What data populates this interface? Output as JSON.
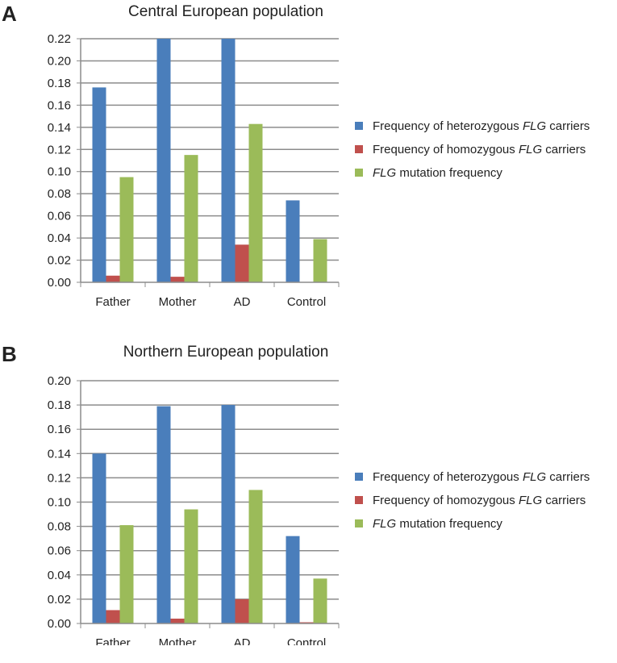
{
  "chart_data": [
    {
      "type": "bar",
      "panel_label": "A",
      "title": "Central European population",
      "categories": [
        "Father",
        "Mother",
        "AD",
        "Control"
      ],
      "ylim": [
        0,
        0.22
      ],
      "yticks": [
        "0.00",
        "0.02",
        "0.04",
        "0.06",
        "0.08",
        "0.10",
        "0.12",
        "0.14",
        "0.16",
        "0.18",
        "0.20",
        "0.22"
      ],
      "grid": true,
      "legend_position": "right",
      "series": [
        {
          "name": "Frequency of heterozygous FLG carriers",
          "name_parts": [
            {
              "text": "Frequency of heterozygous "
            },
            {
              "text": "FLG",
              "italic": true
            },
            {
              "text": " carriers"
            }
          ],
          "color": "#4a7ebb",
          "values": [
            0.176,
            0.22,
            0.22,
            0.074
          ]
        },
        {
          "name": "Frequency of homozygous FLG carriers",
          "name_parts": [
            {
              "text": "Frequency of homozygous "
            },
            {
              "text": "FLG",
              "italic": true
            },
            {
              "text": " carriers"
            }
          ],
          "color": "#c0504d",
          "values": [
            0.006,
            0.005,
            0.034,
            0.0
          ]
        },
        {
          "name": "FLG mutation frequency",
          "name_parts": [
            {
              "text": "FLG",
              "italic": true
            },
            {
              "text": " mutation frequency"
            }
          ],
          "color": "#9bbb59",
          "values": [
            0.095,
            0.115,
            0.143,
            0.039
          ]
        }
      ]
    },
    {
      "type": "bar",
      "panel_label": "B",
      "title": "Northern European population",
      "categories": [
        "Father",
        "Mother",
        "AD",
        "Control"
      ],
      "ylim": [
        0,
        0.2
      ],
      "yticks": [
        "0.00",
        "0.02",
        "0.04",
        "0.06",
        "0.08",
        "0.10",
        "0.12",
        "0.14",
        "0.16",
        "0.18",
        "0.20"
      ],
      "grid": true,
      "legend_position": "right",
      "series": [
        {
          "name": "Frequency of heterozygous FLG carriers",
          "name_parts": [
            {
              "text": "Frequency of heterozygous "
            },
            {
              "text": "FLG",
              "italic": true
            },
            {
              "text": " carriers"
            }
          ],
          "color": "#4a7ebb",
          "values": [
            0.14,
            0.179,
            0.18,
            0.072
          ]
        },
        {
          "name": "Frequency of homozygous FLG carriers",
          "name_parts": [
            {
              "text": "Frequency of homozygous "
            },
            {
              "text": "FLG",
              "italic": true
            },
            {
              "text": " carriers"
            }
          ],
          "color": "#c0504d",
          "values": [
            0.011,
            0.004,
            0.02,
            0.001
          ]
        },
        {
          "name": "FLG mutation frequency",
          "name_parts": [
            {
              "text": "FLG",
              "italic": true
            },
            {
              "text": " mutation frequency"
            }
          ],
          "color": "#9bbb59",
          "values": [
            0.081,
            0.094,
            0.11,
            0.037
          ]
        }
      ]
    }
  ]
}
